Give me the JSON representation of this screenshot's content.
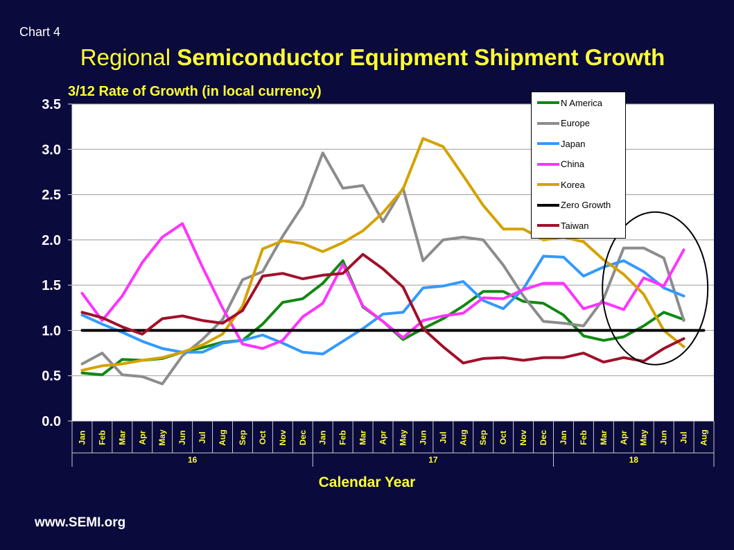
{
  "chart_label": "Chart 4",
  "title_light": "Regional ",
  "title_bold": "Semiconductor Equipment Shipment Growth",
  "footer": "www.SEMI.org",
  "chart_data": {
    "type": "line",
    "subtitle": "3/12 Rate of Growth (in local currency)",
    "xlabel": "Calendar Year",
    "ylabel": "",
    "ylim": [
      0,
      3.5
    ],
    "yticks": [
      "0.0",
      "0.5",
      "1.0",
      "1.5",
      "2.0",
      "2.5",
      "3.0",
      "3.5"
    ],
    "grid": true,
    "legend_position": "top-right",
    "x": [
      "Jan",
      "Feb",
      "Mar",
      "Apr",
      "May",
      "Jun",
      "Jul",
      "Aug",
      "Sep",
      "Oct",
      "Nov",
      "Dec",
      "Jan",
      "Feb",
      "Mar",
      "Apr",
      "May",
      "Jun",
      "Jul",
      "Aug",
      "Sep",
      "Oct",
      "Nov",
      "Dec",
      "Jan",
      "Feb",
      "Mar",
      "Apr",
      "May",
      "Jun",
      "Jul",
      "Aug"
    ],
    "year_groups": [
      {
        "label": "16",
        "start": 0,
        "end": 11
      },
      {
        "label": "17",
        "start": 12,
        "end": 23
      },
      {
        "label": "18",
        "start": 24,
        "end": 31
      }
    ],
    "series": [
      {
        "name": "N America",
        "color": "#118811",
        "values": [
          0.53,
          0.51,
          0.68,
          0.67,
          0.69,
          0.76,
          0.81,
          0.87,
          0.89,
          1.07,
          1.31,
          1.35,
          1.52,
          1.77,
          1.26,
          1.1,
          0.9,
          1.02,
          1.13,
          1.27,
          1.43,
          1.43,
          1.32,
          1.3,
          1.17,
          0.94,
          0.89,
          0.93,
          1.05,
          1.2,
          1.12,
          null
        ]
      },
      {
        "name": "Europe",
        "color": "#8c8c8c",
        "values": [
          0.63,
          0.75,
          0.51,
          0.49,
          0.41,
          0.72,
          0.9,
          1.12,
          1.56,
          1.65,
          2.04,
          2.38,
          2.96,
          2.57,
          2.6,
          2.2,
          2.57,
          1.77,
          2.0,
          2.03,
          2.0,
          1.72,
          1.38,
          1.1,
          1.08,
          1.05,
          1.35,
          1.91,
          1.91,
          1.8,
          1.11,
          null
        ]
      },
      {
        "name": "Japan",
        "color": "#3399ff",
        "values": [
          1.17,
          1.07,
          0.98,
          0.88,
          0.8,
          0.76,
          0.76,
          0.86,
          0.89,
          0.95,
          0.86,
          0.76,
          0.74,
          0.88,
          1.02,
          1.18,
          1.2,
          1.47,
          1.49,
          1.54,
          1.33,
          1.24,
          1.46,
          1.82,
          1.81,
          1.6,
          1.7,
          1.77,
          1.65,
          1.47,
          1.38,
          null
        ]
      },
      {
        "name": "China",
        "color": "#ff33ff",
        "values": [
          1.41,
          1.11,
          1.38,
          1.75,
          2.03,
          2.18,
          1.7,
          1.25,
          0.85,
          0.8,
          0.89,
          1.15,
          1.3,
          1.73,
          1.27,
          1.1,
          0.92,
          1.11,
          1.16,
          1.19,
          1.36,
          1.35,
          1.45,
          1.52,
          1.52,
          1.24,
          1.31,
          1.23,
          1.58,
          1.49,
          1.89,
          null
        ]
      },
      {
        "name": "Korea",
        "color": "#d4a200",
        "values": [
          0.56,
          0.61,
          0.63,
          0.67,
          0.7,
          0.76,
          0.84,
          0.96,
          1.27,
          1.9,
          1.99,
          1.96,
          1.87,
          1.97,
          2.1,
          2.3,
          2.56,
          3.12,
          3.03,
          2.71,
          2.38,
          2.12,
          2.12,
          2.0,
          2.03,
          1.98,
          1.78,
          1.62,
          1.4,
          1.0,
          0.82,
          null
        ]
      },
      {
        "name": "Zero Growth",
        "color": "#000000",
        "values": [
          1,
          1,
          1,
          1,
          1,
          1,
          1,
          1,
          1,
          1,
          1,
          1,
          1,
          1,
          1,
          1,
          1,
          1,
          1,
          1,
          1,
          1,
          1,
          1,
          1,
          1,
          1,
          1,
          1,
          1,
          1,
          1
        ]
      },
      {
        "name": "Taiwan",
        "color": "#a0102a",
        "values": [
          1.2,
          1.14,
          1.04,
          0.96,
          1.13,
          1.16,
          1.11,
          1.08,
          1.22,
          1.6,
          1.63,
          1.57,
          1.61,
          1.63,
          1.84,
          1.68,
          1.48,
          1.02,
          0.82,
          0.64,
          0.69,
          0.7,
          0.67,
          0.7,
          0.7,
          0.75,
          0.65,
          0.7,
          0.66,
          0.8,
          0.91,
          null
        ]
      }
    ]
  }
}
